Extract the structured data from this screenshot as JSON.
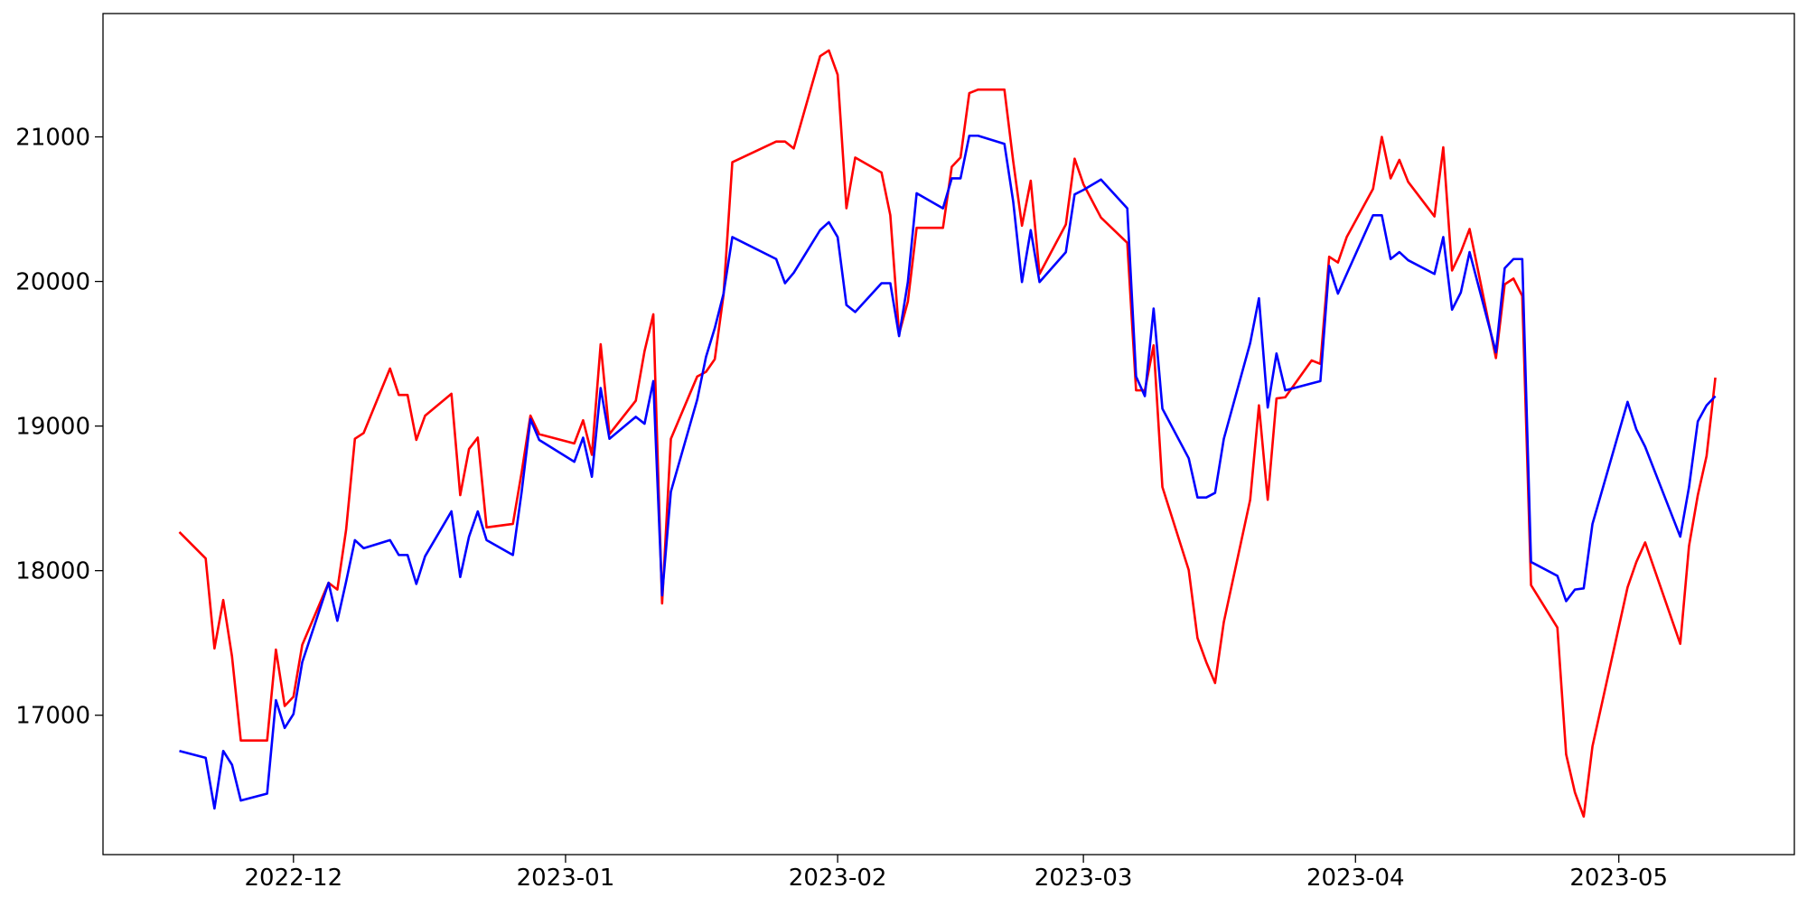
{
  "chart_data": {
    "type": "line",
    "x": [
      19314,
      19317,
      19318,
      19319,
      19320,
      19321,
      19324,
      19325,
      19326,
      19327,
      19328,
      19331,
      19332,
      19333,
      19334,
      19335,
      19338,
      19339,
      19340,
      19341,
      19342,
      19345,
      19346,
      19347,
      19348,
      19349,
      19352,
      19353,
      19354,
      19355,
      19359,
      19360,
      19361,
      19362,
      19363,
      19366,
      19367,
      19368,
      19369,
      19370,
      19373,
      19374,
      19375,
      19376,
      19377,
      19382,
      19383,
      19384,
      19387,
      19388,
      19389,
      19390,
      19391,
      19394,
      19395,
      19396,
      19397,
      19398,
      19401,
      19402,
      19403,
      19404,
      19405,
      19408,
      19409,
      19410,
      19411,
      19412,
      19415,
      19416,
      19417,
      19419,
      19422,
      19423,
      19424,
      19425,
      19426,
      19429,
      19430,
      19431,
      19432,
      19433,
      19436,
      19437,
      19438,
      19439,
      19440,
      19443,
      19444,
      19445,
      19446,
      19447,
      19450,
      19451,
      19452,
      19453,
      19454,
      19457,
      19458,
      19459,
      19460,
      19461,
      19464,
      19465,
      19466,
      19467,
      19468,
      19471,
      19472,
      19473,
      19474,
      19475,
      19479,
      19480,
      19481,
      19485,
      19486,
      19487,
      19488,
      19489
    ],
    "series": [
      {
        "color": "#ff0000",
        "values": [
          18267,
          18084,
          17462,
          17797,
          17406,
          16825,
          16825,
          17454,
          17064,
          17128,
          17486,
          17916,
          17869,
          18283,
          18912,
          18952,
          19398,
          19215,
          19215,
          18904,
          19072,
          19223,
          18522,
          18841,
          18920,
          18299,
          18323,
          18681,
          19072,
          18944,
          18880,
          19040,
          18801,
          19566,
          18944,
          19175,
          19518,
          19773,
          17773,
          18912,
          19343,
          19375,
          19462,
          19908,
          20825,
          20968,
          20968,
          20920,
          21558,
          21598,
          21430,
          20506,
          20857,
          20753,
          20458,
          19637,
          19861,
          20371,
          20371,
          20793,
          20857,
          21303,
          21327,
          21327,
          20833,
          20386,
          20697,
          20052,
          20394,
          20849,
          20673,
          20442,
          20267,
          19247,
          19247,
          19558,
          18578,
          18004,
          17534,
          17367,
          17223,
          17645,
          18490,
          19143,
          18490,
          19191,
          19199,
          19454,
          19430,
          20171,
          20131,
          20307,
          20641,
          21000,
          20713,
          20841,
          20689,
          20450,
          20928,
          20076,
          20203,
          20363,
          19470,
          19980,
          20020,
          19900,
          17900,
          17606,
          16729,
          16466,
          16299,
          16785,
          17885,
          18060,
          18195,
          17494,
          18171,
          18522,
          18793,
          19335
        ]
      },
      {
        "color": "#0000ff",
        "values": [
          16753,
          16705,
          16355,
          16753,
          16657,
          16410,
          16458,
          17104,
          16912,
          17008,
          17367,
          17916,
          17653,
          17924,
          18211,
          18155,
          18211,
          18108,
          18108,
          17908,
          18100,
          18410,
          17956,
          18235,
          18410,
          18211,
          18108,
          18546,
          19048,
          18904,
          18753,
          18920,
          18649,
          19263,
          18912,
          19064,
          19016,
          19311,
          17829,
          18546,
          19183,
          19478,
          19677,
          19916,
          20307,
          20155,
          19988,
          20060,
          20355,
          20410,
          20307,
          19837,
          19789,
          19988,
          19988,
          19622,
          19996,
          20610,
          20506,
          20713,
          20713,
          21008,
          21008,
          20952,
          20554,
          19996,
          20355,
          19996,
          20203,
          20602,
          20633,
          20705,
          20506,
          19343,
          19207,
          19813,
          19120,
          18777,
          18506,
          18506,
          18538,
          18912,
          19574,
          19884,
          19128,
          19502,
          19247,
          19295,
          19311,
          20108,
          19916,
          20052,
          20458,
          20458,
          20155,
          20203,
          20147,
          20052,
          20307,
          19805,
          19924,
          20203,
          19510,
          20092,
          20155,
          20155,
          18060,
          17964,
          17789,
          17869,
          17877,
          18323,
          19167,
          18976,
          18857,
          18235,
          18578,
          19032,
          19143,
          19207
        ]
      }
    ],
    "xlim": [
      19305.3,
      19498.0
    ],
    "ylim": [
      16036,
      21853
    ],
    "xticks": [
      {
        "value": 19327,
        "label": "2022-12"
      },
      {
        "value": 19358,
        "label": "2023-01"
      },
      {
        "value": 19389,
        "label": "2023-02"
      },
      {
        "value": 19417,
        "label": "2023-03"
      },
      {
        "value": 19448,
        "label": "2023-04"
      },
      {
        "value": 19478,
        "label": "2023-05"
      }
    ],
    "yticks": [
      17000,
      18000,
      19000,
      20000,
      21000
    ],
    "grid": false
  }
}
